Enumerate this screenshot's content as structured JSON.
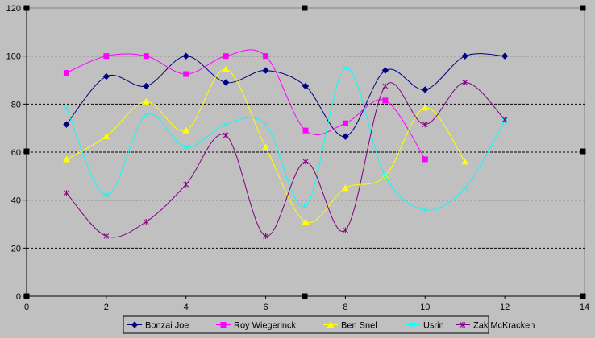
{
  "chart_data": {
    "type": "scatter",
    "xlim": [
      0,
      14
    ],
    "ylim": [
      0,
      120
    ],
    "x_ticks": [
      "0",
      "2",
      "4",
      "6",
      "8",
      "10",
      "12",
      "14"
    ],
    "y_ticks": [
      "0",
      "20",
      "40",
      "60",
      "80",
      "100",
      "120"
    ],
    "grid": "horizontal-dashed",
    "smoothed_lines": true,
    "legend_position": "bottom",
    "series": [
      {
        "name": "Bonzai Joe",
        "color": "#000080",
        "marker": "diamond",
        "x": [
          1,
          2,
          3,
          4,
          5,
          6,
          7,
          8,
          9,
          10,
          11,
          12
        ],
        "y": [
          71.5,
          91.5,
          87.5,
          100,
          89,
          94,
          87.5,
          66.5,
          94,
          86,
          100,
          100
        ]
      },
      {
        "name": "Roy Wiegerinck",
        "color": "#ff00ff",
        "marker": "square",
        "x": [
          1,
          2,
          3,
          4,
          5,
          6,
          7,
          8,
          9,
          10
        ],
        "y": [
          93,
          100,
          100,
          92.5,
          100,
          100,
          69,
          72,
          81.5,
          57
        ]
      },
      {
        "name": "Ben Snel",
        "color": "#ffff00",
        "marker": "triangle",
        "x": [
          1,
          2,
          3,
          4,
          5,
          6,
          7,
          8,
          9,
          10,
          11
        ],
        "y": [
          57,
          66.5,
          81,
          69,
          94.5,
          62,
          31,
          45,
          50,
          78.5,
          56
        ]
      },
      {
        "name": "Usrin",
        "color": "#00ffff",
        "marker": "x",
        "x": [
          1,
          2,
          3,
          4,
          5,
          6,
          7,
          8,
          9,
          10,
          11,
          12
        ],
        "y": [
          78.5,
          42,
          75.5,
          62,
          71.5,
          71.5,
          37.5,
          95,
          50,
          36,
          45,
          73
        ]
      },
      {
        "name": "Zak McKracken",
        "color": "#800080",
        "marker": "star",
        "x": [
          1,
          2,
          3,
          4,
          5,
          6,
          7,
          8,
          9,
          10,
          11,
          12
        ],
        "y": [
          43,
          25,
          31,
          46.5,
          67,
          25,
          56,
          27.5,
          87.5,
          71.5,
          89,
          73.5
        ]
      }
    ]
  }
}
